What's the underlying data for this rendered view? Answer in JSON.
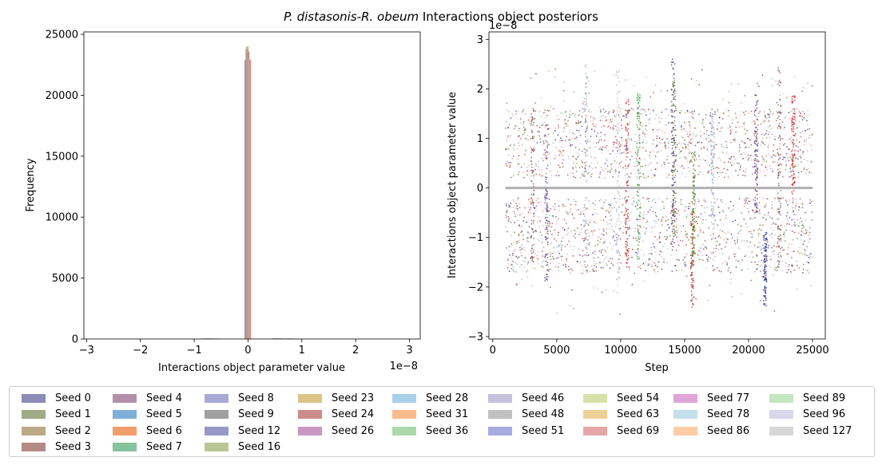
{
  "figure": {
    "title_italic": "P. distasonis-R. obeum",
    "title_rest": " Interactions object posteriors"
  },
  "colors": {
    "Seed 0": "#8a8cb6",
    "Seed 1": "#9fab87",
    "Seed 2": "#bba988",
    "Seed 3": "#b58a86",
    "Seed 4": "#b390aa",
    "Seed 5": "#7fafd9",
    "Seed 6": "#f39d6d",
    "Seed 7": "#85c49c",
    "Seed 8": "#a9a9d7",
    "Seed 9": "#a0a0a0",
    "Seed 12": "#9797c8",
    "Seed 16": "#b9c796",
    "Seed 23": "#dcc486",
    "Seed 24": "#cc8d8a",
    "Seed 26": "#c997c3",
    "Seed 28": "#a7d0ea",
    "Seed 31": "#fdba8d",
    "Seed 36": "#acd9a9",
    "Seed 46": "#c6c1de",
    "Seed 48": "#c0c0c0",
    "Seed 51": "#a6abe1",
    "Seed 54": "#d5e1a6",
    "Seed 63": "#efd197",
    "Seed 69": "#e6a5a6",
    "Seed 77": "#dfa5d8",
    "Seed 78": "#c3e0ec",
    "Seed 86": "#fdcca5",
    "Seed 89": "#c4e6c0",
    "Seed 96": "#d8d7ec",
    "Seed 127": "#d7d7d7"
  },
  "legend": {
    "columns": [
      [
        "Seed 0",
        "Seed 1",
        "Seed 2",
        "Seed 3"
      ],
      [
        "Seed 4",
        "Seed 5",
        "Seed 6",
        "Seed 7"
      ],
      [
        "Seed 8",
        "Seed 9",
        "Seed 12",
        "Seed 16"
      ],
      [
        "Seed 23",
        "Seed 24",
        "Seed 26"
      ],
      [
        "Seed 28",
        "Seed 31",
        "Seed 36"
      ],
      [
        "Seed 46",
        "Seed 48",
        "Seed 51"
      ],
      [
        "Seed 54",
        "Seed 63",
        "Seed 69"
      ],
      [
        "Seed 77",
        "Seed 78",
        "Seed 86"
      ],
      [
        "Seed 89",
        "Seed 96",
        "Seed 127"
      ]
    ]
  },
  "chart_data": [
    {
      "type": "bar",
      "subtype": "histogram",
      "xlabel": "Interactions object parameter value",
      "ylabel": "Frequency",
      "x_offset_label": "1e−8",
      "xlim": [
        -3.05,
        3.2
      ],
      "ylim": [
        0,
        25200
      ],
      "xticks": [
        -3,
        -2,
        -1,
        0,
        1,
        2,
        3
      ],
      "xtick_labels": [
        "−3",
        "−2",
        "−1",
        "0",
        "1",
        "2",
        "3"
      ],
      "yticks": [
        0,
        5000,
        10000,
        15000,
        20000,
        25000
      ],
      "ytick_labels": [
        "0",
        "5000",
        "10000",
        "15000",
        "20000",
        "25000"
      ],
      "bars": [
        {
          "x": -0.045,
          "value": 22900,
          "series": "Seed 0"
        },
        {
          "x": -0.025,
          "value": 23800,
          "series": "Seed 9"
        },
        {
          "x": -0.01,
          "value": 24000,
          "series": "Seed 2"
        },
        {
          "x": 0.005,
          "value": 23600,
          "series": "Seed 3"
        },
        {
          "x": 0.02,
          "value": 23000,
          "series": "Seed 69"
        },
        {
          "x": 0.035,
          "value": 22900,
          "series": "Seed 24"
        }
      ],
      "grid": false
    },
    {
      "type": "scatter",
      "xlabel": "Step",
      "ylabel": "Interactions object parameter value",
      "y_offset_label": "1e−8",
      "xlim": [
        -300,
        26000
      ],
      "ylim": [
        -3.05,
        3.15
      ],
      "xticks": [
        0,
        5000,
        10000,
        15000,
        20000,
        25000
      ],
      "xtick_labels": [
        "0",
        "5000",
        "10000",
        "15000",
        "20000",
        "25000"
      ],
      "yticks": [
        -3,
        -2,
        -1,
        0,
        1,
        2,
        3
      ],
      "ytick_labels": [
        "−3",
        "−2",
        "−1",
        "0",
        "1",
        "2",
        "3"
      ],
      "step_range": [
        1000,
        25000
      ],
      "value_band": [
        -2.75,
        2.95
      ],
      "zero_line": {
        "x_range": [
          1000,
          25000
        ],
        "y": 0
      },
      "clusters": [
        {
          "step": 3100,
          "ymin": -1.5,
          "ymax": 1.6,
          "color": "#8c564b"
        },
        {
          "step": 4200,
          "ymin": -1.9,
          "ymax": 1.3,
          "color": "#6a3d9a"
        },
        {
          "step": 7300,
          "ymin": -1.8,
          "ymax": 2.5,
          "color": "#9ab0d8"
        },
        {
          "step": 9800,
          "ymin": -2.2,
          "ymax": 2.4,
          "color": "#bcbddc"
        },
        {
          "step": 10500,
          "ymin": -1.6,
          "ymax": 1.9,
          "color": "#d62728"
        },
        {
          "step": 11400,
          "ymin": -1.5,
          "ymax": 1.9,
          "color": "#2ca02c"
        },
        {
          "step": 14100,
          "ymin": -1.2,
          "ymax": 2.6,
          "color": "#54278f"
        },
        {
          "step": 14200,
          "ymin": -1.0,
          "ymax": 2.2,
          "color": "#5a8a2a"
        },
        {
          "step": 15600,
          "ymin": -2.45,
          "ymax": -0.4,
          "color": "#c0392b"
        },
        {
          "step": 15700,
          "ymin": -1.4,
          "ymax": 0.8,
          "color": "#5a8a2a"
        },
        {
          "step": 17200,
          "ymin": -0.9,
          "ymax": 1.5,
          "color": "#9ab0d8"
        },
        {
          "step": 20600,
          "ymin": -0.5,
          "ymax": 1.9,
          "color": "#6a3d9a"
        },
        {
          "step": 21300,
          "ymin": -2.4,
          "ymax": -0.9,
          "color": "#253494"
        },
        {
          "step": 23500,
          "ymin": -0.2,
          "ymax": 1.9,
          "color": "#d62728"
        },
        {
          "step": 22400,
          "ymin": -1.6,
          "ymax": 2.5,
          "color": "#8c564b"
        }
      ],
      "grid": false
    }
  ]
}
